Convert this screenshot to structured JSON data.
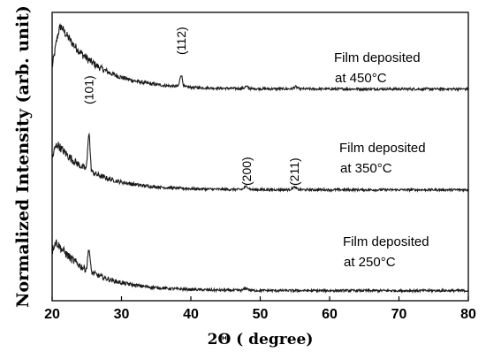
{
  "chart_data": {
    "type": "line",
    "xlabel": "2Θ ( degree)",
    "ylabel": "Normalized Intensity (arb. unit)",
    "xlim": [
      20,
      80
    ],
    "xticks": [
      "20",
      "30",
      "40",
      "50",
      "60",
      "70",
      "80"
    ],
    "grid": false,
    "legend": "none",
    "series": [
      {
        "annotation": [
          "Film deposited",
          "at 450°C"
        ],
        "offset": 2.0,
        "baseline": 0.02,
        "hump": {
          "x": 21.3,
          "amp": 0.62
        },
        "peaks": [
          {
            "x": 38.6,
            "h": 0.12,
            "w": 0.18,
            "label": "(112)"
          },
          {
            "x": 48.0,
            "h": 0.02,
            "w": 0.25,
            "label": ""
          },
          {
            "x": 55.1,
            "h": 0.02,
            "w": 0.25,
            "label": ""
          }
        ]
      },
      {
        "annotation": [
          "Film deposited",
          "at 350°C"
        ],
        "offset": 1.0,
        "baseline": 0.02,
        "hump": {
          "x": 20.8,
          "amp": 0.45
        },
        "peaks": [
          {
            "x": 25.3,
            "h": 0.38,
            "w": 0.16,
            "label": "(101)"
          },
          {
            "x": 48.0,
            "h": 0.03,
            "w": 0.3,
            "label": "(200)"
          },
          {
            "x": 54.9,
            "h": 0.025,
            "w": 0.3,
            "label": "(211)"
          }
        ]
      },
      {
        "annotation": [
          "Film deposited",
          "at 250°C"
        ],
        "offset": 0.0,
        "baseline": 0.02,
        "hump": {
          "x": 20.6,
          "amp": 0.48
        },
        "peaks": [
          {
            "x": 25.3,
            "h": 0.22,
            "w": 0.16,
            "label": ""
          },
          {
            "x": 48.0,
            "h": 0.02,
            "w": 0.3,
            "label": ""
          }
        ]
      }
    ]
  }
}
